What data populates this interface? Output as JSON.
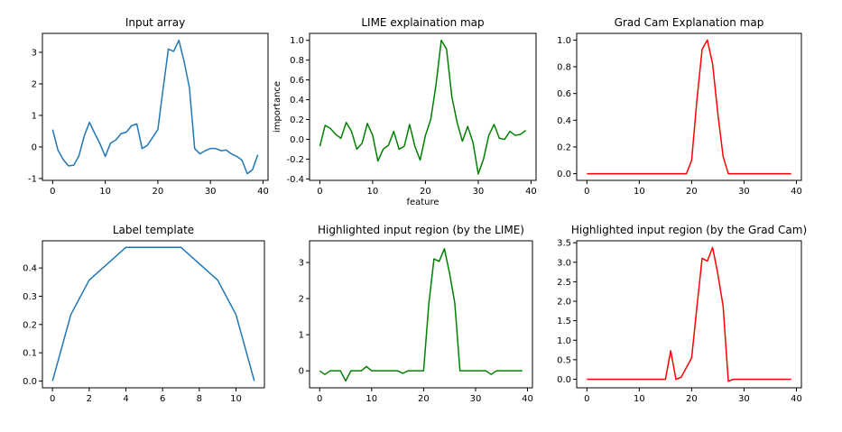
{
  "chart_data": [
    {
      "type": "line",
      "title": "Input array",
      "xlabel": "",
      "ylabel": "",
      "xlim": [
        -1.95,
        40.95
      ],
      "ylim": [
        -1.06,
        3.6
      ],
      "xticks": [
        0,
        10,
        20,
        30,
        40
      ],
      "yticks": [
        -1,
        0,
        1,
        2,
        3
      ],
      "series": [
        {
          "color": "#1f77b4",
          "x": [
            0,
            1,
            2,
            3,
            4,
            5,
            6,
            7,
            8,
            9,
            10,
            11,
            12,
            13,
            14,
            15,
            16,
            17,
            18,
            19,
            20,
            21,
            22,
            23,
            24,
            25,
            26,
            27,
            28,
            29,
            30,
            31,
            32,
            33,
            34,
            35,
            36,
            37,
            38,
            39
          ],
          "y": [
            0.55,
            -0.1,
            -0.4,
            -0.6,
            -0.58,
            -0.28,
            0.35,
            0.78,
            0.43,
            0.1,
            -0.3,
            0.12,
            0.22,
            0.42,
            0.47,
            0.67,
            0.73,
            -0.05,
            0.05,
            0.3,
            0.55,
            1.85,
            3.1,
            3.03,
            3.38,
            2.7,
            1.88,
            -0.05,
            -0.22,
            -0.12,
            -0.05,
            -0.05,
            -0.12,
            -0.1,
            -0.22,
            -0.3,
            -0.42,
            -0.85,
            -0.72,
            -0.25
          ]
        }
      ]
    },
    {
      "type": "line",
      "title": "LIME explaination map",
      "xlabel": "feature",
      "ylabel": "importance",
      "xlim": [
        -1.95,
        40.95
      ],
      "ylim": [
        -0.415,
        1.07
      ],
      "xticks": [
        0,
        10,
        20,
        30,
        40
      ],
      "yticks": [
        -0.4,
        -0.2,
        0.0,
        0.2,
        0.4,
        0.6,
        0.8,
        1.0
      ],
      "series": [
        {
          "color": "#008000",
          "x": [
            0,
            1,
            2,
            3,
            4,
            5,
            6,
            7,
            8,
            9,
            10,
            11,
            12,
            13,
            14,
            15,
            16,
            17,
            18,
            19,
            20,
            21,
            22,
            23,
            24,
            25,
            26,
            27,
            28,
            29,
            30,
            31,
            32,
            33,
            34,
            35,
            36,
            37,
            38,
            39
          ],
          "y": [
            -0.07,
            0.14,
            0.11,
            0.05,
            0.01,
            0.17,
            0.08,
            -0.1,
            -0.04,
            0.16,
            0.04,
            -0.22,
            -0.1,
            -0.06,
            0.08,
            -0.1,
            -0.07,
            0.15,
            -0.07,
            -0.21,
            0.04,
            0.2,
            0.55,
            1.0,
            0.91,
            0.43,
            0.17,
            -0.02,
            0.13,
            -0.03,
            -0.35,
            -0.2,
            0.04,
            0.15,
            0.01,
            0.0,
            0.08,
            0.04,
            0.05,
            0.09
          ]
        }
      ]
    },
    {
      "type": "line",
      "title": "Grad Cam Explanation map",
      "xlabel": "",
      "ylabel": "",
      "xlim": [
        -1.95,
        40.95
      ],
      "ylim": [
        -0.05,
        1.05
      ],
      "xticks": [
        0,
        10,
        20,
        30,
        40
      ],
      "yticks": [
        0.0,
        0.2,
        0.4,
        0.6,
        0.8,
        1.0
      ],
      "series": [
        {
          "color": "#ff0000",
          "x": [
            0,
            1,
            2,
            3,
            4,
            5,
            6,
            7,
            8,
            9,
            10,
            11,
            12,
            13,
            14,
            15,
            16,
            17,
            18,
            19,
            20,
            21,
            22,
            23,
            24,
            25,
            26,
            27,
            28,
            29,
            30,
            31,
            32,
            33,
            34,
            35,
            36,
            37,
            38,
            39
          ],
          "y": [
            0,
            0,
            0,
            0,
            0,
            0,
            0,
            0,
            0,
            0,
            0,
            0,
            0,
            0,
            0,
            0,
            0,
            0,
            0,
            0,
            0.1,
            0.55,
            0.93,
            1.0,
            0.82,
            0.45,
            0.13,
            0,
            0,
            0,
            0,
            0,
            0,
            0,
            0,
            0,
            0,
            0,
            0,
            0
          ]
        }
      ]
    },
    {
      "type": "line",
      "title": "Label template",
      "xlabel": "",
      "ylabel": "",
      "xlim": [
        -0.55,
        11.55
      ],
      "ylim": [
        -0.024,
        0.496
      ],
      "xticks": [
        0,
        2,
        4,
        6,
        8,
        10
      ],
      "yticks": [
        0.0,
        0.1,
        0.2,
        0.3,
        0.4
      ],
      "series": [
        {
          "color": "#1f77b4",
          "x": [
            0,
            1,
            2,
            3,
            4,
            5,
            6,
            7,
            8,
            9,
            10,
            11
          ],
          "y": [
            0.0,
            0.235,
            0.357,
            0.415,
            0.473,
            0.473,
            0.473,
            0.473,
            0.415,
            0.357,
            0.235,
            0.0
          ]
        }
      ]
    },
    {
      "type": "line",
      "title": "Highlighted input region (by the LIME)",
      "xlabel": "",
      "ylabel": "",
      "xlim": [
        -1.95,
        40.95
      ],
      "ylim": [
        -0.47,
        3.6
      ],
      "xticks": [
        0,
        10,
        20,
        30,
        40
      ],
      "yticks": [
        0,
        1,
        2,
        3
      ],
      "series": [
        {
          "color": "#008000",
          "x": [
            0,
            1,
            2,
            3,
            4,
            5,
            6,
            7,
            8,
            9,
            10,
            11,
            12,
            13,
            14,
            15,
            16,
            17,
            18,
            19,
            20,
            21,
            22,
            23,
            24,
            25,
            26,
            27,
            28,
            29,
            30,
            31,
            32,
            33,
            34,
            35,
            36,
            37,
            38,
            39
          ],
          "y": [
            0,
            -0.1,
            0,
            0,
            0,
            -0.28,
            0,
            0,
            0,
            0.12,
            0,
            0,
            0,
            0,
            0,
            0,
            -0.07,
            0,
            0,
            0,
            0,
            1.85,
            3.1,
            3.03,
            3.38,
            2.7,
            1.88,
            0,
            0,
            0,
            0,
            0,
            0,
            -0.1,
            0,
            0,
            0,
            0,
            0,
            0
          ]
        }
      ]
    },
    {
      "type": "line",
      "title": "Highlighted input region (by the Grad Cam)",
      "xlabel": "",
      "ylabel": "",
      "xlim": [
        -1.95,
        40.95
      ],
      "ylim": [
        -0.22,
        3.55
      ],
      "xticks": [
        0,
        10,
        20,
        30,
        40
      ],
      "yticks": [
        0.0,
        0.5,
        1.0,
        1.5,
        2.0,
        2.5,
        3.0,
        3.5
      ],
      "series": [
        {
          "color": "#ff0000",
          "x": [
            0,
            1,
            2,
            3,
            4,
            5,
            6,
            7,
            8,
            9,
            10,
            11,
            12,
            13,
            14,
            15,
            16,
            17,
            18,
            19,
            20,
            21,
            22,
            23,
            24,
            25,
            26,
            27,
            28,
            29,
            30,
            31,
            32,
            33,
            34,
            35,
            36,
            37,
            38,
            39
          ],
          "y": [
            0,
            0,
            0,
            0,
            0,
            0,
            0,
            0,
            0,
            0,
            0,
            0,
            0,
            0,
            0,
            0,
            0.73,
            0,
            0.05,
            0.3,
            0.55,
            1.85,
            3.1,
            3.03,
            3.38,
            2.7,
            1.88,
            -0.05,
            0,
            0,
            0,
            0,
            0,
            0,
            0,
            0,
            0,
            0,
            0,
            0
          ]
        }
      ]
    }
  ]
}
